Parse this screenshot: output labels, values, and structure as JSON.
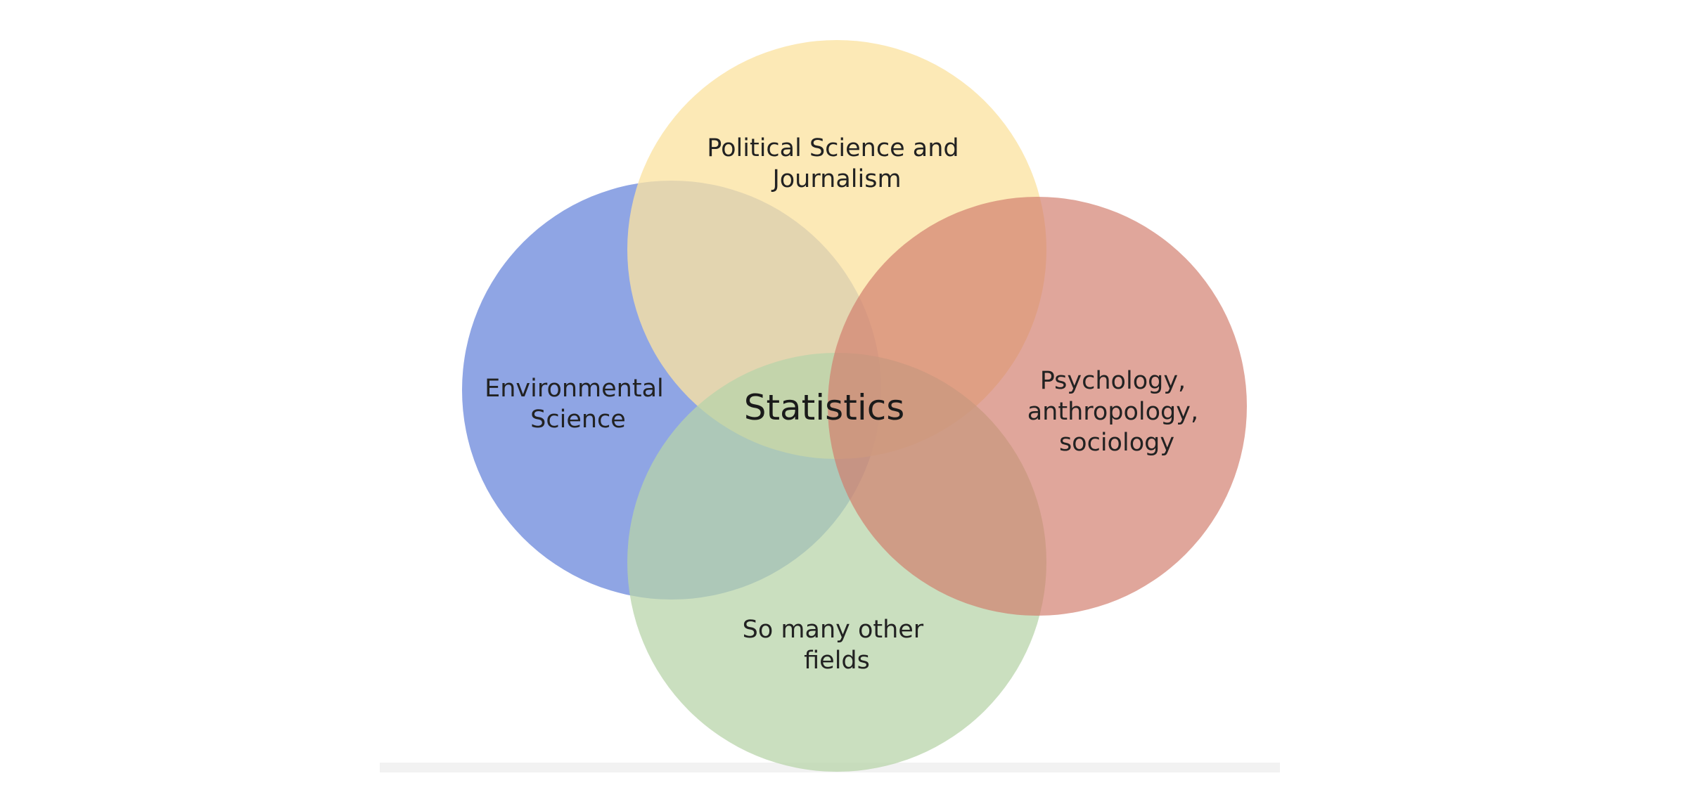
{
  "diagram": {
    "center_label": "Statistics",
    "circles": [
      {
        "id": "environmental",
        "label_lines": [
          "Environmental",
          "Science"
        ],
        "color": "#6f8cdc"
      },
      {
        "id": "political",
        "label_lines": [
          "Political Science and",
          "Journalism"
        ],
        "color": "#fbe3a1"
      },
      {
        "id": "psychology",
        "label_lines": [
          "Psychology,",
          "anthropology,",
          "sociology"
        ],
        "color": "#d27c6c"
      },
      {
        "id": "other",
        "label_lines": [
          "So many other",
          "fields"
        ],
        "color": "#b7d4a8"
      }
    ]
  }
}
